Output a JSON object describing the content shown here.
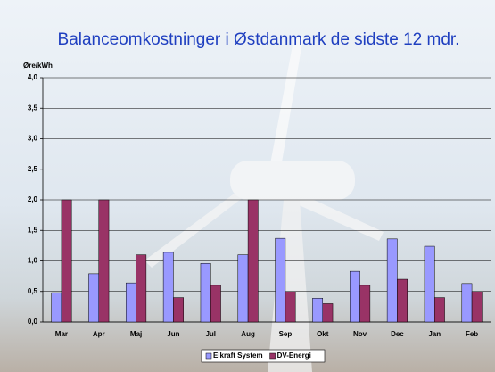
{
  "chart_data": {
    "type": "bar",
    "title": "Balanceomkostninger i Østdanmark de sidste 12 mdr.",
    "y_label": "Øre/kWh",
    "categories": [
      "Mar",
      "Apr",
      "Maj",
      "Jun",
      "Jul",
      "Aug",
      "Sep",
      "Okt",
      "Nov",
      "Dec",
      "Jan",
      "Feb"
    ],
    "series": [
      {
        "name": "Elkraft System",
        "color": "#9999ff",
        "values": [
          0.48,
          0.79,
          0.64,
          1.14,
          0.96,
          1.1,
          1.37,
          0.39,
          0.83,
          1.36,
          1.24,
          0.63
        ]
      },
      {
        "name": "DV-Energi",
        "color": "#993366",
        "values": [
          2.0,
          2.0,
          1.1,
          0.4,
          0.6,
          2.0,
          0.5,
          0.3,
          0.6,
          0.7,
          0.4,
          0.5
        ]
      }
    ],
    "ylim": [
      0,
      4
    ],
    "yticks": [
      {
        "value": 0,
        "label": "0,0"
      },
      {
        "value": 0.5,
        "label": "0,5"
      },
      {
        "value": 1,
        "label": "1,0"
      },
      {
        "value": 1.5,
        "label": "1,5"
      },
      {
        "value": 2,
        "label": "2,0"
      },
      {
        "value": 2.5,
        "label": "2,5"
      },
      {
        "value": 3,
        "label": "3,0"
      },
      {
        "value": 3.5,
        "label": "3,5"
      },
      {
        "value": 4,
        "label": "4,0"
      }
    ],
    "grid": true,
    "legend": "bottom"
  }
}
